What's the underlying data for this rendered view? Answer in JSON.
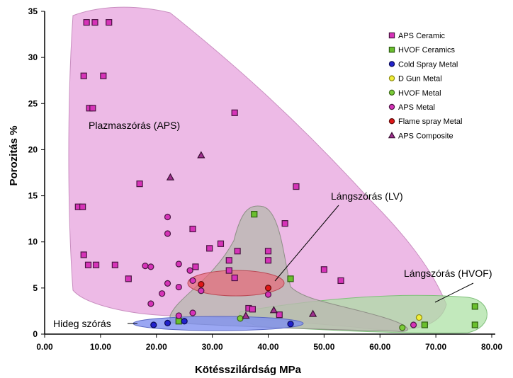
{
  "chart_data": {
    "type": "scatter",
    "title": "",
    "xlabel": "Kötésszilárdság MPa",
    "ylabel": "Porozitás %",
    "xlim": [
      0,
      80
    ],
    "ylim": [
      0,
      35
    ],
    "x_ticks": [
      "0.00",
      "10.00",
      "20.00",
      "30.00",
      "40.00",
      "50.00",
      "60.00",
      "70.00",
      "80.00"
    ],
    "y_ticks": [
      "0",
      "5",
      "10",
      "15",
      "20",
      "25",
      "30",
      "35"
    ],
    "legend_position": "top-right",
    "series": [
      {
        "name": "APS Ceramic",
        "marker": "square",
        "color": "#d633b8",
        "edge": "#4a1442",
        "points": [
          [
            7.5,
            33.8
          ],
          [
            9,
            33.8
          ],
          [
            11.5,
            33.8
          ],
          [
            7,
            28
          ],
          [
            10.5,
            28
          ],
          [
            8,
            24.5
          ],
          [
            8.6,
            24.5
          ],
          [
            34,
            24
          ],
          [
            17,
            16.3
          ],
          [
            45,
            16
          ],
          [
            6,
            13.8
          ],
          [
            6.8,
            13.8
          ],
          [
            26.5,
            11.4
          ],
          [
            43,
            12
          ],
          [
            31.5,
            9.8
          ],
          [
            34.5,
            9
          ],
          [
            40,
            9
          ],
          [
            29.5,
            9.3
          ],
          [
            33,
            8
          ],
          [
            40,
            8
          ],
          [
            7,
            8.6
          ],
          [
            7.8,
            7.5
          ],
          [
            9.2,
            7.5
          ],
          [
            12.6,
            7.5
          ],
          [
            27,
            7.3
          ],
          [
            33,
            6.9
          ],
          [
            50,
            7
          ],
          [
            15,
            6
          ],
          [
            34,
            6.1
          ],
          [
            53,
            5.8
          ],
          [
            36.5,
            2.8
          ],
          [
            37.2,
            2.7
          ],
          [
            42,
            2.1
          ]
        ]
      },
      {
        "name": "HVOF Ceramics",
        "marker": "square",
        "color": "#6abf2e",
        "edge": "#2e5e12",
        "points": [
          [
            37.5,
            13
          ],
          [
            44,
            6
          ],
          [
            77,
            3
          ],
          [
            77,
            1
          ],
          [
            68,
            1
          ],
          [
            24,
            1.4
          ]
        ]
      },
      {
        "name": "Cold Spray Metal",
        "marker": "circle",
        "color": "#2222cc",
        "edge": "#0a0a55",
        "points": [
          [
            19.5,
            1
          ],
          [
            22,
            1.2
          ],
          [
            25,
            1.4
          ],
          [
            44,
            1.1
          ]
        ]
      },
      {
        "name": "D Gun Metal",
        "marker": "circle",
        "color": "#f2ef3a",
        "edge": "#8c8a10",
        "points": [
          [
            67,
            1.8
          ]
        ]
      },
      {
        "name": "HVOF Metal",
        "marker": "circle",
        "color": "#7acc38",
        "edge": "#3b6618",
        "points": [
          [
            64,
            0.7
          ],
          [
            35,
            1.7
          ]
        ]
      },
      {
        "name": "APS Metal",
        "marker": "circle",
        "color": "#d633b8",
        "edge": "#4a1442",
        "points": [
          [
            22,
            12.7
          ],
          [
            22,
            10.9
          ],
          [
            18,
            7.4
          ],
          [
            19,
            7.3
          ],
          [
            24,
            7.6
          ],
          [
            26,
            6.9
          ],
          [
            22,
            5.5
          ],
          [
            24,
            5.1
          ],
          [
            21,
            4.4
          ],
          [
            19,
            3.3
          ],
          [
            26.5,
            5.8
          ],
          [
            28,
            4.7
          ],
          [
            40,
            4.3
          ],
          [
            26.5,
            2.3
          ],
          [
            24,
            2
          ],
          [
            66,
            1
          ]
        ]
      },
      {
        "name": "Flame spray Metal",
        "marker": "circle",
        "color": "#e01818",
        "edge": "#5e0a0a",
        "points": [
          [
            28,
            5.4
          ],
          [
            40,
            5
          ]
        ]
      },
      {
        "name": "APS Composite",
        "marker": "triangle",
        "color": "#a0308f",
        "edge": "#3a0f33",
        "points": [
          [
            28,
            19.4
          ],
          [
            22.5,
            17
          ],
          [
            36,
            2
          ],
          [
            41,
            2.6
          ],
          [
            48,
            2.2
          ]
        ]
      }
    ],
    "regions": [
      {
        "name": "Plazmaszórás (APS)",
        "color": "#e7a3de"
      },
      {
        "name": "Lángszórás (LV)",
        "color": "#e56a78"
      },
      {
        "name": "Lángszórás (HVOF)",
        "color": "#a8e0a0"
      },
      {
        "name": "Hideg szórás",
        "color": "#7d8ef0"
      }
    ]
  }
}
